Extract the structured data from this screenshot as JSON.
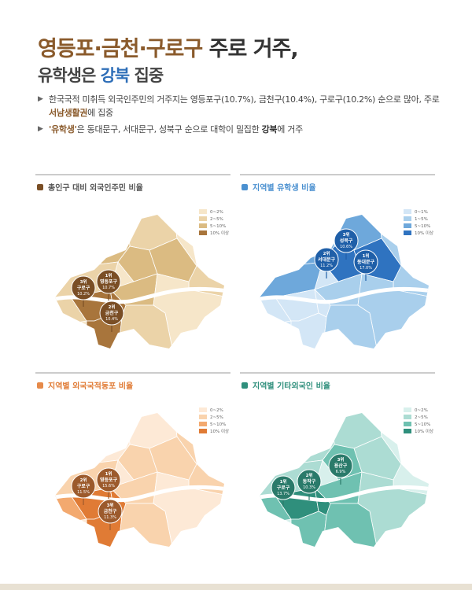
{
  "header": {
    "title_part1": "영등포·금천·구로구",
    "title_part2": " 주로 거주,",
    "subtitle_part1": "유학생은 ",
    "subtitle_part2": "강북",
    "subtitle_part3": " 집중"
  },
  "bullets": [
    {
      "text1": "한국국적 미취득 외국인주민의 거주지는 영등포구(10.7%), 금천구(10.4%), 구로구(10.2%) 순으로 많아, 주로 ",
      "highlight": "서남생활권",
      "text2": "에 집중"
    },
    {
      "highlight": "'유학생'",
      "text1": "은 동대문구, 서대문구, 성북구 순으로 대학이 밀집한 ",
      "bold": "강북",
      "text2": "에 거주"
    }
  ],
  "panels": [
    {
      "title": "총인구 대비 외국인주민 비율",
      "legend": [
        "0~2%",
        "2~5%",
        "5~10%",
        "10% 이상"
      ],
      "pins": [
        {
          "rank": "1위",
          "name": "영등포구",
          "value": "10.7%"
        },
        {
          "rank": "2위",
          "name": "금천구",
          "value": "10.4%"
        },
        {
          "rank": "3위",
          "name": "구로구",
          "value": "10.2%"
        }
      ]
    },
    {
      "title": "지역별 유학생 비율",
      "legend": [
        "0~1%",
        "1~5%",
        "5~10%",
        "10% 이상"
      ],
      "pins": [
        {
          "rank": "1위",
          "name": "동대문구",
          "value": "17.0%"
        },
        {
          "rank": "2위",
          "name": "서대문구",
          "value": "11.2%"
        },
        {
          "rank": "3위",
          "name": "성북구",
          "value": "10.6%"
        }
      ]
    },
    {
      "title": "지역별 외국국적동포 비율",
      "legend": [
        "0~2%",
        "2~5%",
        "5~10%",
        "10% 이상"
      ],
      "pins": [
        {
          "rank": "1위",
          "name": "영등포구",
          "value": "15.6%"
        },
        {
          "rank": "2위",
          "name": "구로구",
          "value": "11.5%"
        },
        {
          "rank": "3위",
          "name": "금천구",
          "value": "11.3%"
        }
      ]
    },
    {
      "title": "지역별 기타외국인 비율",
      "legend": [
        "0~2%",
        "2~5%",
        "5~10%",
        "10% 이상"
      ],
      "pins": [
        {
          "rank": "1위",
          "name": "구로구",
          "value": "13.7%"
        },
        {
          "rank": "2위",
          "name": "동작구",
          "value": "10.3%"
        },
        {
          "rank": "3위",
          "name": "용산구",
          "value": "6.9%"
        }
      ]
    }
  ]
}
